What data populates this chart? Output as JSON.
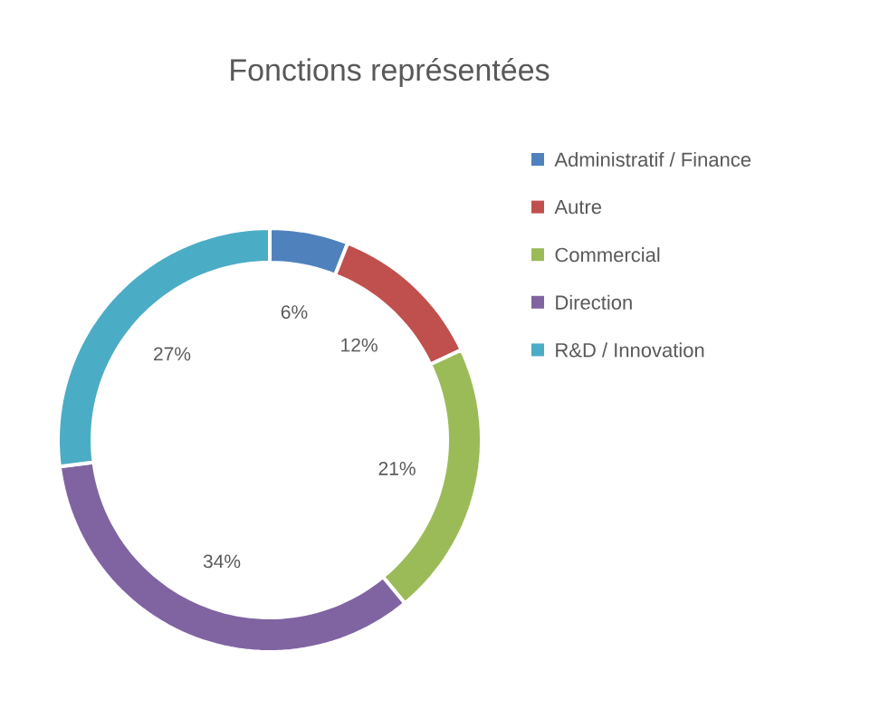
{
  "chart_data": {
    "type": "donut",
    "title": "Fonctions représentées",
    "categories": [
      "Administratif / Finance",
      "Autre",
      "Commercial",
      "Direction",
      "R&D / Innovation"
    ],
    "values": [
      6,
      12,
      21,
      34,
      27
    ],
    "value_labels": [
      "6%",
      "12%",
      "21%",
      "34%",
      "27%"
    ],
    "colors": [
      "#4f81bd",
      "#c0504d",
      "#9bbb59",
      "#8064a2",
      "#4bacc6"
    ],
    "legend": "right"
  }
}
